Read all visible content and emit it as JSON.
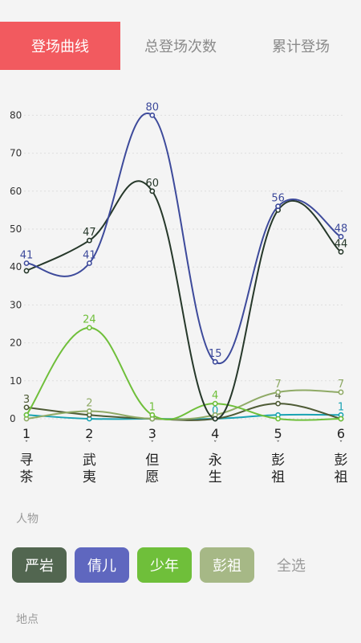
{
  "tabs": [
    {
      "label": "登场曲线",
      "active": true
    },
    {
      "label": "总登场次数",
      "active": false
    },
    {
      "label": "累计登场",
      "active": false
    }
  ],
  "chart_data": {
    "type": "line",
    "categories": [
      "1\n寻\n茶",
      "2\n武\n夷",
      "3\n但\n愿",
      "4\n永\n生",
      "5\n彭\n祖",
      "6\n彭\n祖"
    ],
    "category_numbers": [
      "1",
      "2",
      "3",
      "4",
      "5",
      "6"
    ],
    "category_names": [
      [
        "寻",
        "茶"
      ],
      [
        "武",
        "夷"
      ],
      [
        "但",
        "愿"
      ],
      [
        "永",
        "生"
      ],
      [
        "彭",
        "祖"
      ],
      [
        "彭",
        "祖"
      ]
    ],
    "yticks": [
      0,
      10,
      20,
      30,
      40,
      50,
      60,
      70,
      80
    ],
    "ylim": [
      0,
      80
    ],
    "grid": true,
    "series": [
      {
        "name": "严岩",
        "color": "#26382a",
        "values": [
          39,
          47,
          60,
          0,
          55,
          44
        ]
      },
      {
        "name": "倩儿",
        "color": "#3d4a9b",
        "values": [
          41,
          41,
          80,
          15,
          56,
          48
        ]
      },
      {
        "name": "少年",
        "color": "#6fbf3a",
        "values": [
          1,
          24,
          1,
          4,
          0,
          0
        ]
      },
      {
        "name": "彭祖",
        "color": "#8faa66",
        "values": [
          0,
          2,
          0,
          1,
          7,
          7
        ]
      },
      {
        "name": "",
        "color": "#4e5b35",
        "values": [
          3,
          1,
          0,
          0,
          4,
          0
        ]
      },
      {
        "name": "",
        "color": "#1aa3b3",
        "values": [
          1,
          0,
          0,
          0,
          1,
          1
        ]
      }
    ],
    "value_labels": [
      [
        "",
        "47",
        "60",
        "",
        "",
        "44"
      ],
      [
        "41",
        "41",
        "80",
        "15",
        "56",
        "48"
      ],
      [
        "",
        "24",
        "1",
        "4",
        "",
        ""
      ],
      [
        "",
        "2",
        "",
        "",
        "7",
        "7"
      ],
      [
        "3",
        "",
        "",
        "",
        "4",
        ""
      ],
      [
        "",
        "",
        "",
        "0",
        "",
        "1"
      ]
    ]
  },
  "section_person": {
    "label": "人物"
  },
  "person_chips": [
    {
      "label": "严岩",
      "color": "#526650"
    },
    {
      "label": "倩儿",
      "color": "#5f67bf"
    },
    {
      "label": "少年",
      "color": "#6fbf3a"
    },
    {
      "label": "彭祖",
      "color": "#a6b886"
    },
    {
      "label": "全选",
      "color": ""
    }
  ],
  "section_place": {
    "label": "地点"
  }
}
